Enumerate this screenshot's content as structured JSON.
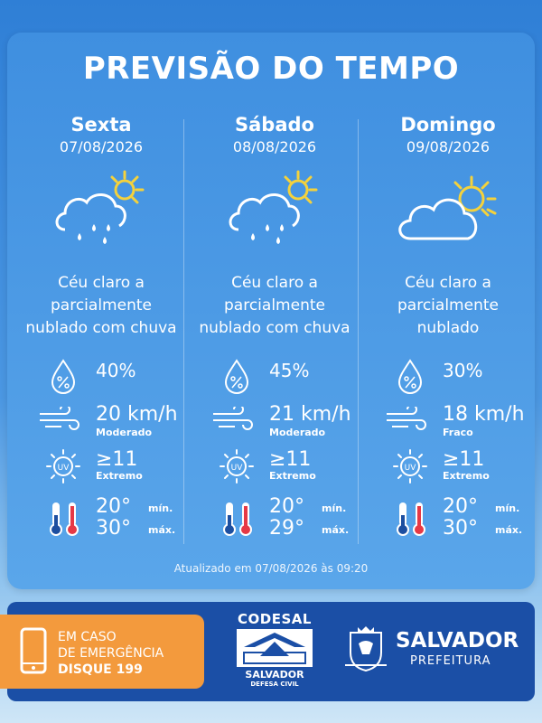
{
  "title": "PREVISÃO DO TEMPO",
  "days": [
    {
      "day": "Sexta",
      "date": "07/08/2026",
      "icon": "cloud-rain-sun-icon",
      "desc1": "Céu claro a",
      "desc2": "parcialmente",
      "desc3": "nublado com chuva",
      "rain": "40%",
      "wind": "20 km/h",
      "wind_level": "Moderado",
      "uv": "≥11",
      "uv_level": "Extremo",
      "min": "20°",
      "max": "30°"
    },
    {
      "day": "Sábado",
      "date": "08/08/2026",
      "icon": "cloud-rain-sun-icon",
      "desc1": "Céu claro a",
      "desc2": "parcialmente",
      "desc3": "nublado com chuva",
      "rain": "45%",
      "wind": "21 km/h",
      "wind_level": "Moderado",
      "uv": "≥11",
      "uv_level": "Extremo",
      "min": "20°",
      "max": "29°"
    },
    {
      "day": "Domingo",
      "date": "09/08/2026",
      "icon": "cloud-sun-icon",
      "desc1": "Céu claro a",
      "desc2": "parcialmente",
      "desc3": "nublado",
      "rain": "30%",
      "wind": "18 km/h",
      "wind_level": "Fraco",
      "uv": "≥11",
      "uv_level": "Extremo",
      "min": "20°",
      "max": "30°"
    }
  ],
  "labels": {
    "min": "mín.",
    "max": "máx."
  },
  "updated": "Atualizado em 07/08/2026 às 09:20",
  "emergency": {
    "line1": "EM CASO",
    "line2": "DE EMERGÊNCIA",
    "line3": "DISQUE 199"
  },
  "codesal": {
    "name": "CODESAL",
    "city": "SALVADOR",
    "sub": "DEFESA CIVIL"
  },
  "prefeitura": {
    "name": "SALVADOR",
    "sub": "PREFEITURA"
  },
  "colors": {
    "card": "#4a9ae6",
    "footer": "#1b4fa6",
    "emergency": "#f39a3d",
    "sun": "#f4d23c",
    "thermo_red": "#e63946",
    "thermo_blue": "#1d4fa0"
  }
}
